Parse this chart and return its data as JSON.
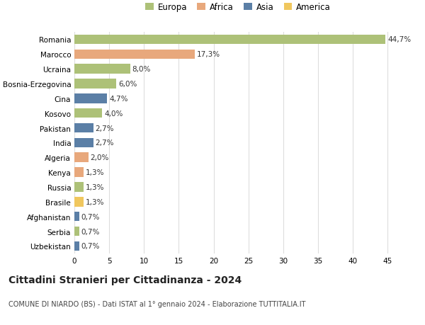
{
  "countries": [
    "Romania",
    "Marocco",
    "Ucraina",
    "Bosnia-Erzegovina",
    "Cina",
    "Kosovo",
    "Pakistan",
    "India",
    "Algeria",
    "Kenya",
    "Russia",
    "Brasile",
    "Afghanistan",
    "Serbia",
    "Uzbekistan"
  ],
  "values": [
    44.7,
    17.3,
    8.0,
    6.0,
    4.7,
    4.0,
    2.7,
    2.7,
    2.0,
    1.3,
    1.3,
    1.3,
    0.7,
    0.7,
    0.7
  ],
  "labels": [
    "44,7%",
    "17,3%",
    "8,0%",
    "6,0%",
    "4,7%",
    "4,0%",
    "2,7%",
    "2,7%",
    "2,0%",
    "1,3%",
    "1,3%",
    "1,3%",
    "0,7%",
    "0,7%",
    "0,7%"
  ],
  "continents": [
    "Europa",
    "Africa",
    "Europa",
    "Europa",
    "Asia",
    "Europa",
    "Asia",
    "Asia",
    "Africa",
    "Africa",
    "Europa",
    "America",
    "Asia",
    "Europa",
    "Asia"
  ],
  "continent_colors": {
    "Europa": "#adc178",
    "Africa": "#e8a87c",
    "Asia": "#5b7fa6",
    "America": "#f0c75e"
  },
  "legend_order": [
    "Europa",
    "Africa",
    "Asia",
    "America"
  ],
  "title": "Cittadini Stranieri per Cittadinanza - 2024",
  "subtitle": "COMUNE DI NIARDO (BS) - Dati ISTAT al 1° gennaio 2024 - Elaborazione TUTTITALIA.IT",
  "xlabel_ticks": [
    0,
    5,
    10,
    15,
    20,
    25,
    30,
    35,
    40,
    45
  ],
  "xlim": [
    0,
    47
  ],
  "background_color": "#ffffff",
  "grid_color": "#dddddd",
  "bar_height": 0.65,
  "label_fontsize": 7.5,
  "title_fontsize": 10,
  "subtitle_fontsize": 7,
  "tick_fontsize": 7.5,
  "legend_fontsize": 8.5
}
